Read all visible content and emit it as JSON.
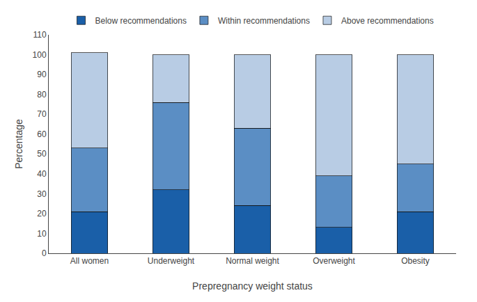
{
  "chart_data": {
    "type": "bar",
    "stacked": true,
    "categories": [
      "All women",
      "Underweight",
      "Normal weight",
      "Overweight",
      "Obesity"
    ],
    "series": [
      {
        "name": "Below recommendations",
        "color": "#1A5FA8",
        "values": [
          21,
          32,
          24,
          13,
          21
        ]
      },
      {
        "name": "Within recommendations",
        "color": "#5B8EC4",
        "values": [
          32,
          44,
          39,
          26,
          24
        ]
      },
      {
        "name": "Above recommendations",
        "color": "#B8CCE4",
        "values": [
          48,
          24,
          37,
          61,
          55
        ]
      }
    ],
    "xlabel": "Prepregnancy weight status",
    "ylabel": "Percentage",
    "ylim": [
      0,
      110
    ],
    "yticks": [
      0,
      10,
      20,
      30,
      40,
      50,
      60,
      70,
      80,
      90,
      100,
      110
    ],
    "grid": false,
    "legend": "top"
  }
}
